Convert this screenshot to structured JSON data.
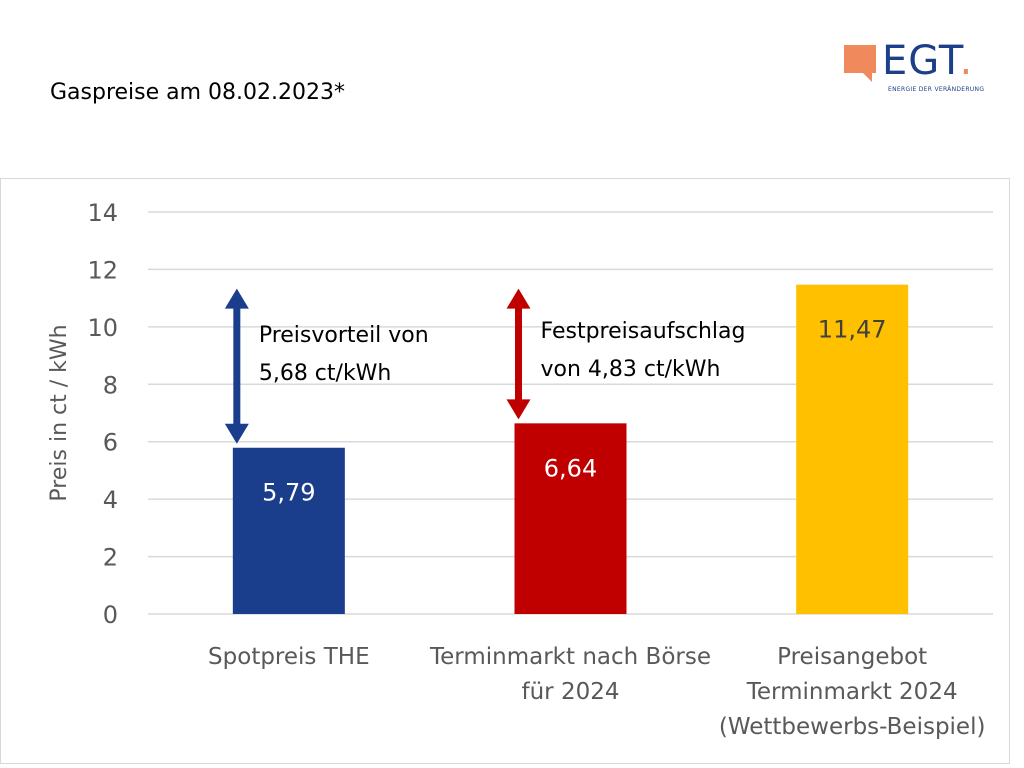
{
  "slide": {
    "title": "Gaspreise am 08.02.2023*"
  },
  "logo": {
    "text": "EGT",
    "dot": ".",
    "tagline": "ENERGIE DER VERÄNDERUNG",
    "colors": {
      "blue": "#1B3F8B",
      "orange": "#F08A5D"
    }
  },
  "chart_data": {
    "type": "bar",
    "categories": [
      [
        "Spotpreis THE"
      ],
      [
        "Terminmarkt nach Börse",
        "für 2024"
      ],
      [
        "Preisangebot",
        "Terminmarkt 2024",
        "(Wettbewerbs-Beispiel)"
      ]
    ],
    "values": [
      5.79,
      6.64,
      11.47
    ],
    "value_labels": [
      "5,79",
      "6,64",
      "11,47"
    ],
    "colors": [
      "#1A3E8C",
      "#C00000",
      "#FFC000"
    ],
    "ylabel": "Preis in ct / kWh",
    "ylim": [
      0,
      14
    ],
    "yticks": [
      0,
      2,
      4,
      6,
      8,
      10,
      12,
      14
    ],
    "grid": true,
    "annotations": [
      {
        "lines": [
          "Preisvorteil von",
          "5,68 ct/kWh"
        ],
        "from": 5.79,
        "to": 11.47,
        "bar_index": 0,
        "color": "#1A3E8C"
      },
      {
        "lines": [
          "Festpreisaufschlag",
          "von 4,83 ct/kWh"
        ],
        "from": 6.64,
        "to": 11.47,
        "bar_index": 1,
        "color": "#C00000"
      }
    ]
  }
}
